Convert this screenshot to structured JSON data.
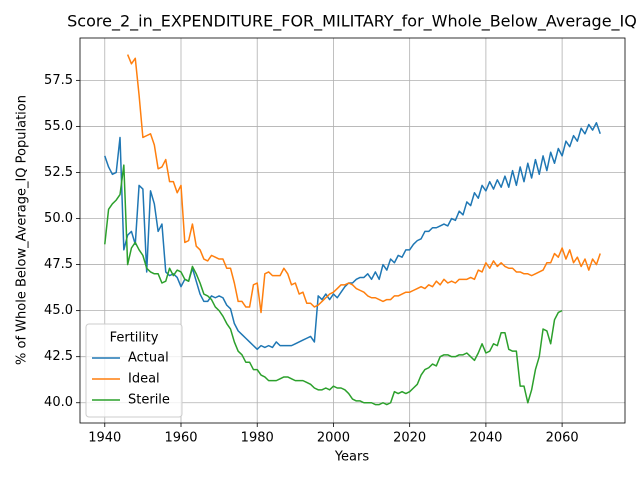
{
  "chart_data": {
    "type": "line",
    "title": "Score_2_in_EXPENDITURE_FOR_MILITARY_for_Whole_Below_Average_IQ",
    "xlabel": "Years",
    "ylabel": "% of Whole Below_Average_IQ Population",
    "x": [
      1940,
      1941,
      1942,
      1943,
      1944,
      1945,
      1946,
      1947,
      1948,
      1949,
      1950,
      1951,
      1952,
      1953,
      1954,
      1955,
      1956,
      1957,
      1958,
      1959,
      1960,
      1961,
      1962,
      1963,
      1964,
      1965,
      1966,
      1967,
      1968,
      1969,
      1970,
      1971,
      1972,
      1973,
      1974,
      1975,
      1976,
      1977,
      1978,
      1979,
      1980,
      1981,
      1982,
      1983,
      1984,
      1985,
      1986,
      1987,
      1988,
      1989,
      1990,
      1991,
      1992,
      1993,
      1994,
      1995,
      1996,
      1997,
      1998,
      1999,
      2000,
      2001,
      2002,
      2003,
      2004,
      2005,
      2006,
      2007,
      2008,
      2009,
      2010,
      2011,
      2012,
      2013,
      2014,
      2015,
      2016,
      2017,
      2018,
      2019,
      2020,
      2021,
      2022,
      2023,
      2024,
      2025,
      2026,
      2027,
      2028,
      2029,
      2030,
      2031,
      2032,
      2033,
      2034,
      2035,
      2036,
      2037,
      2038,
      2039,
      2040,
      2041,
      2042,
      2043,
      2044,
      2045,
      2046,
      2047,
      2048,
      2049,
      2050,
      2051,
      2052,
      2053,
      2054,
      2055,
      2056,
      2057,
      2058,
      2059,
      2060,
      2061,
      2062,
      2063,
      2064,
      2065,
      2066,
      2067,
      2068,
      2069,
      2070
    ],
    "series": [
      {
        "name": "Actual",
        "color": "#1f77b4",
        "values": [
          53.4,
          52.8,
          52.4,
          52.5,
          54.4,
          48.3,
          49.1,
          49.3,
          48.6,
          51.8,
          51.6,
          47.1,
          51.5,
          50.8,
          49.3,
          49.7,
          47.1,
          46.9,
          47.0,
          46.8,
          46.3,
          46.7,
          46.6,
          47.3,
          46.6,
          45.9,
          45.5,
          45.5,
          45.8,
          45.7,
          45.8,
          45.7,
          45.3,
          45.1,
          44.3,
          43.9,
          43.7,
          43.5,
          43.3,
          43.1,
          42.9,
          43.1,
          43.0,
          43.1,
          43.0,
          43.3,
          43.1,
          43.1,
          43.1,
          43.1,
          43.2,
          43.3,
          43.4,
          43.5,
          43.6,
          43.3,
          45.8,
          45.6,
          45.9,
          45.6,
          45.9,
          45.7,
          46.0,
          46.3,
          46.5,
          46.5,
          46.7,
          46.8,
          46.8,
          47.0,
          46.7,
          47.1,
          46.7,
          47.5,
          47.2,
          47.8,
          47.6,
          48.0,
          47.9,
          48.3,
          48.3,
          48.6,
          48.8,
          48.9,
          49.3,
          49.3,
          49.5,
          49.5,
          49.6,
          49.7,
          49.6,
          50.0,
          49.9,
          50.4,
          50.2,
          50.9,
          50.7,
          51.4,
          51.1,
          51.8,
          51.5,
          52.0,
          51.6,
          52.1,
          51.7,
          52.3,
          51.7,
          52.6,
          51.8,
          52.8,
          52.0,
          53.0,
          52.2,
          53.2,
          52.4,
          53.4,
          52.6,
          53.6,
          53.0,
          53.8,
          53.4,
          54.2,
          53.9,
          54.5,
          54.2,
          54.9,
          54.6,
          55.1,
          54.8,
          55.2,
          54.6
        ]
      },
      {
        "name": "Ideal",
        "color": "#ff7f0e",
        "values": [
          null,
          null,
          null,
          null,
          null,
          null,
          58.9,
          58.4,
          58.7,
          56.7,
          54.4,
          54.5,
          54.6,
          54.0,
          52.7,
          52.8,
          53.2,
          52.0,
          52.0,
          51.4,
          51.8,
          48.7,
          48.8,
          49.7,
          48.5,
          48.3,
          47.8,
          47.7,
          48.0,
          47.9,
          47.8,
          47.8,
          47.3,
          47.3,
          46.5,
          45.5,
          45.5,
          45.2,
          45.2,
          46.4,
          46.5,
          44.9,
          47.0,
          47.1,
          46.9,
          46.9,
          46.9,
          47.3,
          47.0,
          46.4,
          46.5,
          45.9,
          46.0,
          45.4,
          45.4,
          45.2,
          45.3,
          45.5,
          45.7,
          45.9,
          46.0,
          46.2,
          46.4,
          46.4,
          46.5,
          46.4,
          46.2,
          46.1,
          46.0,
          45.8,
          45.7,
          45.7,
          45.6,
          45.5,
          45.6,
          45.6,
          45.8,
          45.8,
          45.9,
          46.0,
          46.0,
          46.1,
          46.2,
          46.3,
          46.2,
          46.4,
          46.3,
          46.6,
          46.4,
          46.7,
          46.5,
          46.6,
          46.5,
          46.7,
          46.7,
          46.7,
          46.8,
          46.7,
          47.2,
          47.1,
          47.6,
          47.3,
          47.7,
          47.4,
          47.6,
          47.4,
          47.3,
          47.3,
          47.1,
          47.1,
          47.0,
          47.0,
          46.9,
          47.0,
          47.1,
          47.2,
          47.6,
          47.6,
          48.1,
          47.9,
          48.4,
          47.8,
          48.3,
          47.6,
          47.9,
          47.4,
          47.8,
          47.2,
          47.8,
          47.5,
          48.1
        ]
      },
      {
        "name": "Sterile",
        "color": "#2ca02c",
        "values": [
          48.6,
          50.5,
          50.8,
          51.0,
          51.3,
          52.9,
          47.5,
          48.4,
          48.7,
          48.3,
          48.0,
          47.3,
          47.1,
          47.0,
          47.0,
          46.5,
          46.6,
          47.3,
          46.9,
          47.2,
          47.1,
          46.7,
          46.6,
          47.4,
          47.0,
          46.5,
          45.9,
          45.8,
          45.6,
          45.2,
          45.0,
          44.7,
          44.3,
          44.0,
          43.3,
          42.8,
          42.6,
          42.2,
          42.2,
          41.8,
          41.8,
          41.5,
          41.4,
          41.2,
          41.2,
          41.2,
          41.3,
          41.4,
          41.4,
          41.3,
          41.2,
          41.2,
          41.2,
          41.1,
          41.0,
          40.8,
          40.7,
          40.7,
          40.8,
          40.7,
          40.9,
          40.8,
          40.8,
          40.7,
          40.5,
          40.2,
          40.1,
          40.1,
          40.0,
          40.0,
          40.0,
          39.9,
          39.9,
          40.0,
          39.9,
          40.0,
          40.6,
          40.5,
          40.6,
          40.5,
          40.6,
          40.8,
          41.0,
          41.5,
          41.8,
          41.9,
          42.1,
          42.0,
          42.5,
          42.6,
          42.6,
          42.5,
          42.5,
          42.6,
          42.6,
          42.7,
          42.5,
          42.3,
          42.7,
          43.2,
          42.7,
          42.8,
          43.2,
          43.1,
          43.8,
          43.8,
          42.9,
          42.8,
          42.8,
          40.9,
          40.9,
          40.0,
          40.7,
          41.8,
          42.5,
          44.0,
          43.9,
          43.2,
          44.5,
          44.9,
          45.0,
          null,
          null,
          null,
          null,
          null,
          null,
          null,
          null,
          null,
          null
        ]
      }
    ],
    "xlim": [
      1933.5,
      2076.5
    ],
    "xticks": [
      1940,
      1960,
      1980,
      2000,
      2020,
      2040,
      2060
    ],
    "ylim": [
      38.9,
      59.8
    ],
    "yticks": [
      {
        "value": 40,
        "label": "40.0"
      },
      {
        "value": 42.5,
        "label": "42.5"
      },
      {
        "value": 45,
        "label": "45.0"
      },
      {
        "value": 47.5,
        "label": "47.5"
      },
      {
        "value": 50,
        "label": "50.0"
      },
      {
        "value": 52.5,
        "label": "52.5"
      },
      {
        "value": 55,
        "label": "55.0"
      },
      {
        "value": 57.5,
        "label": "57.5"
      }
    ],
    "grid": true,
    "legend_title": "Fertility",
    "legend_loc": "lower left"
  }
}
